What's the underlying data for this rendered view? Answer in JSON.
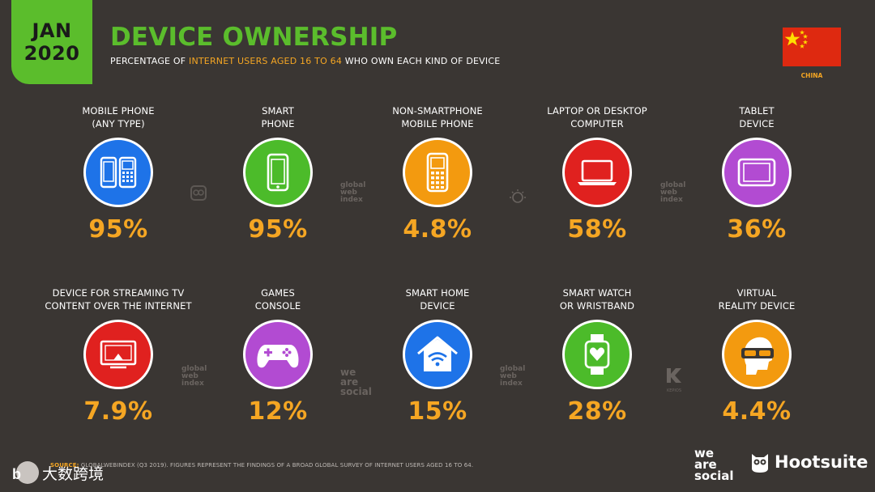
{
  "header": {
    "date_month": "JAN",
    "date_year": "2020",
    "title": "DEVICE OWNERSHIP",
    "subtitle_pre": "PERCENTAGE OF ",
    "subtitle_highlight": "INTERNET USERS AGED 16 TO 64",
    "subtitle_post": " WHO OWN EACH KIND OF DEVICE",
    "country": "CHINA"
  },
  "devices": [
    {
      "line1": "MOBILE PHONE",
      "line2": "(ANY TYPE)",
      "value": "95%",
      "color": "#1e73e8",
      "icon": "mobile-phones-icon"
    },
    {
      "line1": "SMART",
      "line2": "PHONE",
      "value": "95%",
      "color": "#4cbb2a",
      "icon": "smartphone-icon"
    },
    {
      "line1": "NON-SMARTPHONE",
      "line2": "MOBILE PHONE",
      "value": "4.8%",
      "color": "#f39a0f",
      "icon": "feature-phone-icon"
    },
    {
      "line1": "LAPTOP OR DESKTOP",
      "line2": "COMPUTER",
      "value": "58%",
      "color": "#e0211f",
      "icon": "laptop-icon"
    },
    {
      "line1": "TABLET",
      "line2": "DEVICE",
      "value": "36%",
      "color": "#b24bd2",
      "icon": "tablet-icon"
    },
    {
      "line1": "DEVICE FOR STREAMING TV",
      "line2": "CONTENT OVER THE INTERNET",
      "value": "7.9%",
      "color": "#e0211f",
      "icon": "streaming-tv-icon"
    },
    {
      "line1": "GAMES",
      "line2": "CONSOLE",
      "value": "12%",
      "color": "#b24bd2",
      "icon": "gamepad-icon"
    },
    {
      "line1": "SMART HOME",
      "line2": "DEVICE",
      "value": "15%",
      "color": "#1e73e8",
      "icon": "smart-home-icon"
    },
    {
      "line1": "SMART WATCH",
      "line2": "OR WRISTBAND",
      "value": "28%",
      "color": "#4cbb2a",
      "icon": "smartwatch-icon"
    },
    {
      "line1": "VIRTUAL",
      "line2": "REALITY DEVICE",
      "value": "4.4%",
      "color": "#f39a0f",
      "icon": "vr-headset-icon"
    }
  ],
  "watermarks": {
    "gwi_line1": "global",
    "gwi_line2": "web",
    "gwi_line3": "index",
    "we_line1": "we",
    "we_line2": "are",
    "we_line3": "social",
    "kepios": "KEPIOS"
  },
  "footer": {
    "source_label": "SOURCE:",
    "source_text": " GLOBALWEBINDEX (Q3 2019). FIGURES REPRESENT THE FINDINGS OF A BROAD GLOBAL SURVEY OF INTERNET USERS AGED 16 TO 64.",
    "brand_we1": "we",
    "brand_we2": "are",
    "brand_we3": "social",
    "hootsuite": "Hootsuite",
    "corner_text": "大数跨境"
  },
  "colors": {
    "accent_green": "#5bbd2c",
    "accent_orange": "#f5a623",
    "background": "#3a3633"
  }
}
